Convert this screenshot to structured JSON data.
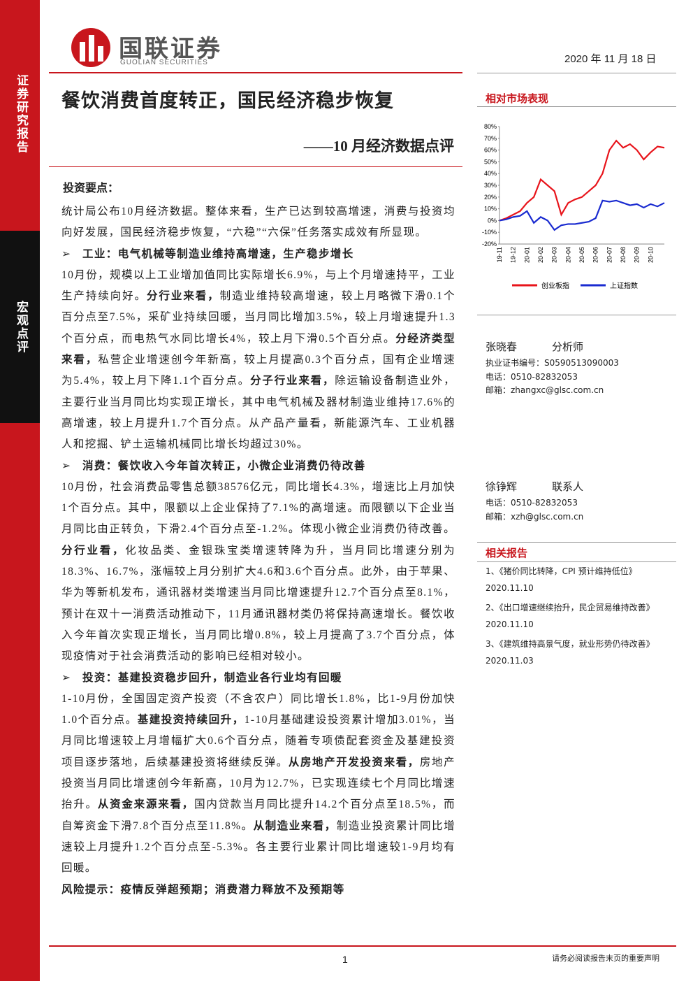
{
  "header": {
    "logo_cn": "国联证券",
    "logo_en": "GUOLIAN SECURITIES",
    "date": "2020 年 11 月 18 日"
  },
  "sidebar": {
    "top": "证券研究报告",
    "middle": "宏观点评"
  },
  "title": "餐饮消费首度转正，国民经济稳步恢复",
  "subtitle": "——10 月经济数据点评",
  "summary": {
    "heading": "投资要点：",
    "blocks": [
      {
        "kind": "paragraph",
        "runs": [
          {
            "text": "统计局公布10月经济数据。整体来看，生产已达到较高增速，消费与投资均向好发展，国民经济稳步恢复，“六稳”“六保”任务落实成效有所显现。",
            "bold": false
          }
        ]
      },
      {
        "kind": "bullet",
        "runs": [
          {
            "text": "工业：电气机械等制造业维持高增速，生产稳步增长",
            "bold": true
          }
        ]
      },
      {
        "kind": "paragraph",
        "runs": [
          {
            "text": "10月份，规模以上工业增加值同比实际增长6.9%，与上个月增速持平，工业生产持续向好。",
            "bold": false
          },
          {
            "text": "分行业来看，",
            "bold": true
          },
          {
            "text": "制造业维持较高增速，较上月略微下滑0.1个百分点至7.5%，采矿业持续回暖，当月同比增加3.5%，较上月增速提升1.3个百分点，而电热气水同比增长4%，较上月下滑0.5个百分点。",
            "bold": false
          },
          {
            "text": "分经济类型来看，",
            "bold": true
          },
          {
            "text": "私营企业增速创今年新高，较上月提高0.3个百分点，国有企业增速为5.4%，较上月下降1.1个百分点。",
            "bold": false
          },
          {
            "text": "分子行业来看，",
            "bold": true
          },
          {
            "text": "除运输设备制造业外，主要行业当月同比均实现正增长，其中电气机械及器材制造业维持17.6%的高增速，较上月提升1.7个百分点。从产品产量看，新能源汽车、工业机器人和挖掘、铲土运输机械同比增长均超过30%。",
            "bold": false
          }
        ]
      },
      {
        "kind": "bullet",
        "runs": [
          {
            "text": "消费：餐饮收入今年首次转正，小微企业消费仍待改善",
            "bold": true
          }
        ]
      },
      {
        "kind": "paragraph",
        "runs": [
          {
            "text": "10月份，社会消费品零售总额38576亿元，同比增长4.3%，增速比上月加快1个百分点。其中，限额以上企业保持了7.1%的高增速。而限额以下企业当月同比由正转负，下滑2.4个百分点至-1.2%。体现小微企业消费仍待改善。",
            "bold": false
          },
          {
            "text": "分行业看，",
            "bold": true
          },
          {
            "text": "化妆品类、金银珠宝类增速转降为升，当月同比增速分别为18.3%、16.7%，涨幅较上月分别扩大4.6和3.6个百分点。此外，由于苹果、华为等新机发布，通讯器材类增速当月同比增速提升12.7个百分点至8.1%，预计在双十一消费活动推动下，11月通讯器材类仍将保持高速增长。餐饮收入今年首次实现正增长，当月同比增0.8%，较上月提高了3.7个百分点，体现疫情对于社会消费活动的影响已经相对较小。",
            "bold": false
          }
        ]
      },
      {
        "kind": "bullet",
        "runs": [
          {
            "text": "投资：基建投资稳步回升，制造业各行业均有回暖",
            "bold": true
          }
        ]
      },
      {
        "kind": "paragraph",
        "runs": [
          {
            "text": "1-10月份，全国固定资产投资（不含农户）同比增长1.8%，比1-9月份加快1.0个百分点。",
            "bold": false
          },
          {
            "text": "基建投资持续回升，",
            "bold": true
          },
          {
            "text": "1-10月基础建设投资累计增加3.01%，当月同比增速较上月增幅扩大0.6个百分点，随着专项债配套资金及基建投资项目逐步落地，后续基建投资将继续反弹。",
            "bold": false
          },
          {
            "text": "从房地产开发投资来看，",
            "bold": true
          },
          {
            "text": "房地产投资当月同比增速创今年新高，10月为12.7%，已实现连续七个月同比增速抬升。",
            "bold": false
          },
          {
            "text": "从资金来源来看，",
            "bold": true
          },
          {
            "text": "国内贷款当月同比提升14.2个百分点至18.5%，而自筹资金下滑7.8个百分点至11.8%。",
            "bold": false
          },
          {
            "text": "从制造业来看，",
            "bold": true
          },
          {
            "text": "制造业投资累计同比增速较上月提升1.2个百分点至-5.3%。各主要行业累计同比增速较1-9月均有回暖。",
            "bold": false
          }
        ]
      },
      {
        "kind": "paragraph",
        "runs": [
          {
            "text": "风险提示：疫情反弹超预期；消费潜力释放不及预期等",
            "bold": true
          }
        ]
      }
    ]
  },
  "market": {
    "heading": "相对市场表现"
  },
  "chart_data": {
    "type": "line",
    "categories": [
      "19-11",
      null,
      "19-12",
      null,
      "20-01",
      null,
      "20-02",
      null,
      "20-03",
      null,
      "20-04",
      null,
      "20-05",
      null,
      "20-06",
      null,
      "20-07",
      null,
      "20-08",
      null,
      "20-09",
      null,
      "20-10",
      null,
      null
    ],
    "series": [
      {
        "name": "创业板指",
        "color": "#e8141b",
        "values": [
          0,
          2,
          5,
          8,
          15,
          20,
          35,
          30,
          25,
          5,
          15,
          18,
          20,
          25,
          30,
          40,
          60,
          68,
          62,
          65,
          60,
          52,
          58,
          63,
          62
        ]
      },
      {
        "name": "上证指数",
        "color": "#1a2bd0",
        "values": [
          0,
          1,
          3,
          4,
          8,
          -2,
          3,
          0,
          -8,
          -4,
          -3,
          -3,
          -2,
          -1,
          2,
          17,
          16,
          17,
          15,
          13,
          14,
          11,
          14,
          12,
          15
        ]
      }
    ],
    "ylim": [
      -20,
      80
    ],
    "yticks": [
      {
        "value": -20,
        "label": "-20%"
      },
      {
        "value": -10,
        "label": "-10%"
      },
      {
        "value": 0,
        "label": "0%"
      },
      {
        "value": 10,
        "label": "10%"
      },
      {
        "value": 20,
        "label": "20%"
      },
      {
        "value": 30,
        "label": "30%"
      },
      {
        "value": 40,
        "label": "40%"
      },
      {
        "value": 50,
        "label": "50%"
      },
      {
        "value": 60,
        "label": "60%"
      },
      {
        "value": 70,
        "label": "70%"
      },
      {
        "value": 80,
        "label": "80%"
      }
    ]
  },
  "analysts": [
    {
      "name": "张晓春",
      "role": "分析师",
      "lines": [
        "执业证书编号：S0590513090003",
        "电话：0510-82832053",
        "邮箱：zhangxc@glsc.com.cn"
      ]
    },
    {
      "name": "徐铮辉",
      "role": "联系人",
      "lines": [
        "电话：0510-82832053",
        "邮箱：xzh@glsc.com.cn"
      ]
    }
  ],
  "related": {
    "heading": "相关报告",
    "items": [
      {
        "title": "1、《猪价同比转降，CPI 预计维持低位》",
        "date": "2020.11.10"
      },
      {
        "title": "2、《出口增速继续抬升，民企贸易维持改善》",
        "date": "2020.11.10"
      },
      {
        "title": "3、《建筑维持高景气度，就业形势仍待改善》",
        "date": "2020.11.03"
      }
    ]
  },
  "footer": {
    "page": "1",
    "note": "请务必阅读报告末页的重要声明"
  }
}
